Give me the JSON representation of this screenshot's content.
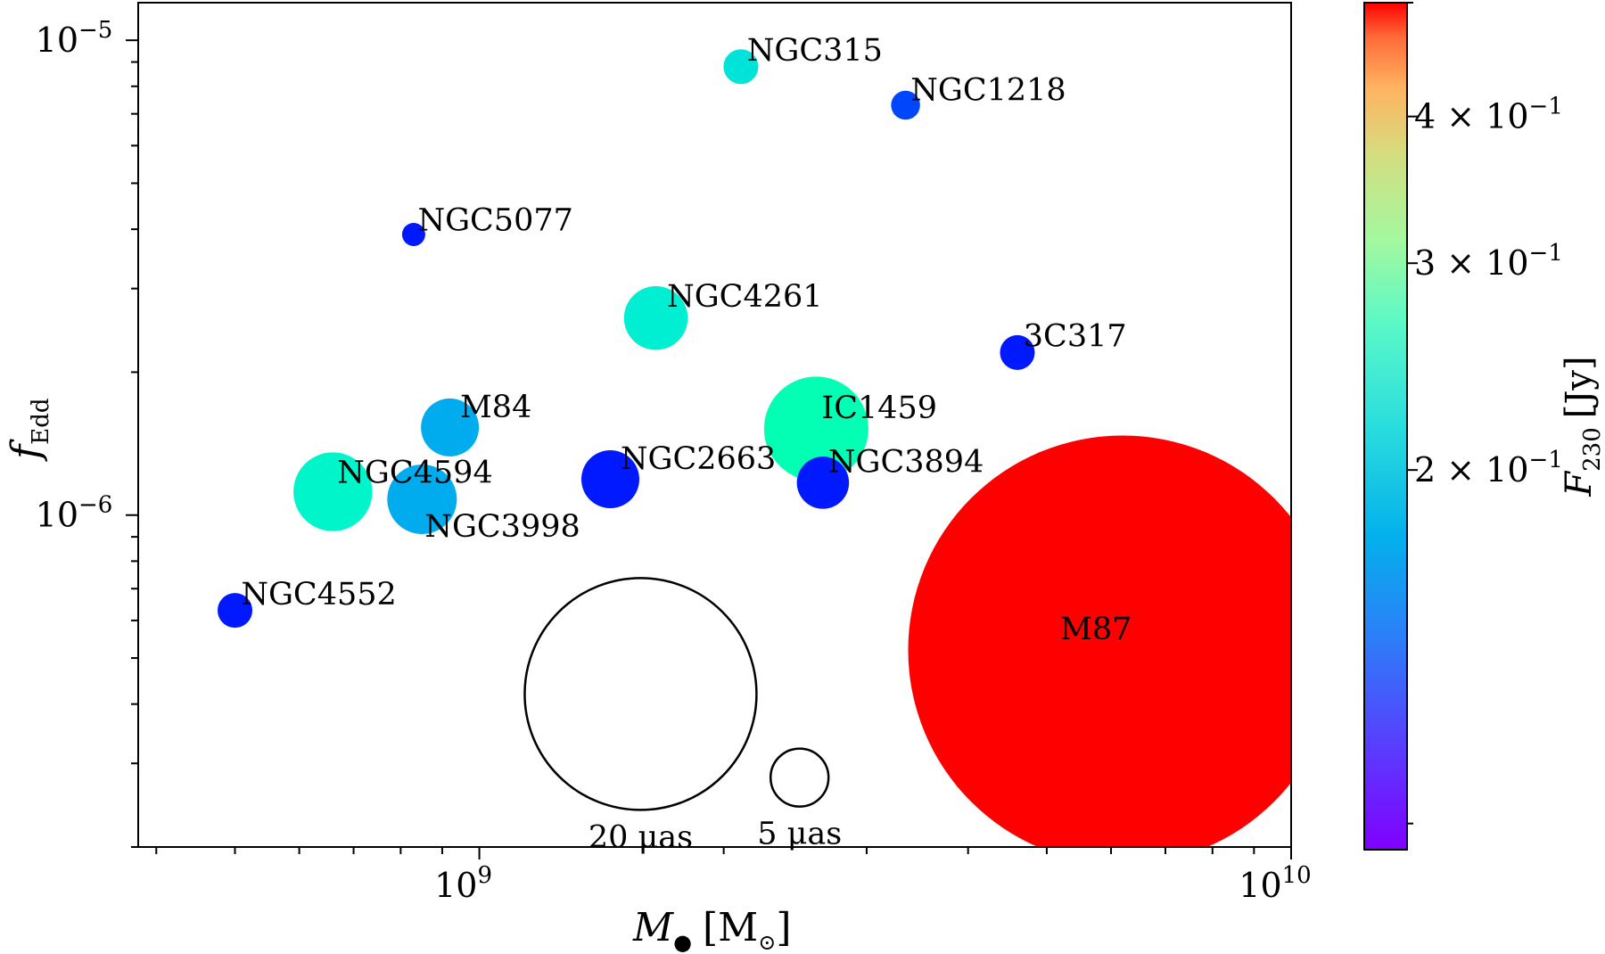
{
  "chart_data": {
    "type": "scatter",
    "xscale": "log",
    "yscale": "log",
    "xlim": [
      380000000,
      10000000000
    ],
    "ylim": [
      2e-07,
      1.2e-05
    ],
    "xlabel": {
      "main": "M",
      "sub": "●",
      "unit": "[M",
      "unit_sub": "⊙",
      "unit_close": "]"
    },
    "ylabel": {
      "main": "f",
      "sub": "Edd"
    },
    "xticks": [
      {
        "base": "10",
        "exp": "9",
        "value": 1000000000
      },
      {
        "base": "10",
        "exp": "10",
        "value": 10000000000
      }
    ],
    "yticks": [
      {
        "base": "10",
        "exp": "−6",
        "value": 1e-06
      },
      {
        "base": "10",
        "exp": "−5",
        "value": 1e-05
      }
    ],
    "colorbar": {
      "label_main": "F",
      "label_sub": "230",
      "label_unit": "[Jy]",
      "min": 0.095,
      "max": 0.5,
      "ticks": [
        {
          "mant": "2 × 10",
          "exp": "−1",
          "value": 0.2
        },
        {
          "mant": "3 × 10",
          "exp": "−1",
          "value": 0.3
        },
        {
          "mant": "4 × 10",
          "exp": "−1",
          "value": 0.4
        }
      ]
    },
    "points": [
      {
        "name": "NGC315",
        "mass": 2100000000,
        "fedd": 8.8e-06,
        "flux": 0.17,
        "size_muas": 3.0
      },
      {
        "name": "NGC1218",
        "mass": 3350000000,
        "fedd": 7.3e-06,
        "flux": 0.11,
        "size_muas": 2.5
      },
      {
        "name": "NGC5077",
        "mass": 830000000,
        "fedd": 3.9e-06,
        "flux": 0.1,
        "size_muas": 2.0
      },
      {
        "name": "NGC4261",
        "mass": 1650000000,
        "fedd": 2.6e-06,
        "flux": 0.18,
        "size_muas": 5.5
      },
      {
        "name": "3C317",
        "mass": 4600000000,
        "fedd": 2.2e-06,
        "flux": 0.1,
        "size_muas": 3.0
      },
      {
        "name": "M84",
        "mass": 920000000,
        "fedd": 1.53e-06,
        "flux": 0.14,
        "size_muas": 5.0
      },
      {
        "name": "IC1459",
        "mass": 2600000000,
        "fedd": 1.52e-06,
        "flux": 0.22,
        "size_muas": 9.0
      },
      {
        "name": "NGC2663",
        "mass": 1450000000,
        "fedd": 1.19e-06,
        "flux": 0.1,
        "size_muas": 5.0
      },
      {
        "name": "NGC3894",
        "mass": 2650000000,
        "fedd": 1.17e-06,
        "flux": 0.1,
        "size_muas": 4.5
      },
      {
        "name": "NGC4594",
        "mass": 660000000,
        "fedd": 1.12e-06,
        "flux": 0.19,
        "size_muas": 6.8
      },
      {
        "name": "NGC3998",
        "mass": 850000000,
        "fedd": 1.08e-06,
        "flux": 0.14,
        "size_muas": 6.0
      },
      {
        "name": "NGC4552",
        "mass": 500000000,
        "fedd": 6.3e-07,
        "flux": 0.1,
        "size_muas": 3.0
      },
      {
        "name": "M87",
        "mass": 6200000000,
        "fedd": 5.2e-07,
        "flux": 0.5,
        "size_muas": 37.0
      }
    ],
    "reference_circles": [
      {
        "label": "20 μas",
        "size_muas": 20,
        "mass": 1580000000,
        "fedd": 4.2e-07
      },
      {
        "label": "5 μas",
        "size_muas": 5,
        "mass": 2480000000,
        "fedd": 2.8e-07
      }
    ]
  }
}
